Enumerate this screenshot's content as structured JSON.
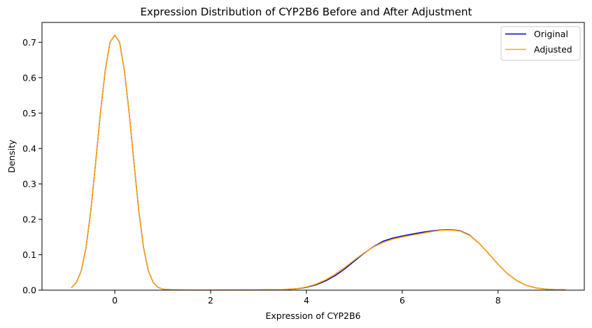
{
  "chart_data": {
    "type": "line",
    "title": "Expression Distribution of CYP2B6 Before and After Adjustment",
    "xlabel": "Expression of CYP2B6",
    "ylabel": "Density",
    "xlim": [
      -1.52,
      9.8
    ],
    "ylim": [
      0.0,
      0.756
    ],
    "xticks": [
      0,
      2,
      4,
      6,
      8
    ],
    "yticks": [
      0.0,
      0.1,
      0.2,
      0.3,
      0.4,
      0.5,
      0.6,
      0.7
    ],
    "xtick_labels": [
      "0",
      "2",
      "4",
      "6",
      "8"
    ],
    "ytick_labels": [
      "0.0",
      "0.1",
      "0.2",
      "0.3",
      "0.4",
      "0.5",
      "0.6",
      "0.7"
    ],
    "legend_position": "top-right",
    "grid": false,
    "series": [
      {
        "name": "Original",
        "color": "#0000cc",
        "x": [
          -0.9,
          -0.8,
          -0.7,
          -0.6,
          -0.5,
          -0.4,
          -0.3,
          -0.2,
          -0.1,
          0.0,
          0.1,
          0.2,
          0.3,
          0.4,
          0.5,
          0.6,
          0.7,
          0.8,
          0.9,
          1.0,
          1.2,
          1.5,
          2.0,
          3.0,
          3.5,
          3.8,
          4.0,
          4.2,
          4.4,
          4.6,
          4.8,
          5.0,
          5.2,
          5.4,
          5.6,
          5.8,
          6.0,
          6.2,
          6.4,
          6.6,
          6.8,
          7.0,
          7.2,
          7.4,
          7.6,
          7.8,
          8.0,
          8.2,
          8.4,
          8.6,
          8.8,
          9.0,
          9.2,
          9.4
        ],
        "y": [
          0.008,
          0.022,
          0.055,
          0.12,
          0.225,
          0.36,
          0.5,
          0.62,
          0.7,
          0.72,
          0.7,
          0.62,
          0.5,
          0.36,
          0.225,
          0.12,
          0.055,
          0.022,
          0.008,
          0.003,
          0.001,
          0.0005,
          0.0005,
          0.0007,
          0.0015,
          0.004,
          0.008,
          0.015,
          0.026,
          0.041,
          0.06,
          0.082,
          0.104,
          0.123,
          0.138,
          0.147,
          0.153,
          0.158,
          0.163,
          0.167,
          0.17,
          0.171,
          0.168,
          0.156,
          0.133,
          0.104,
          0.073,
          0.046,
          0.026,
          0.013,
          0.006,
          0.003,
          0.0015,
          0.001
        ]
      },
      {
        "name": "Adjusted",
        "color": "#ffa500",
        "x": [
          -0.9,
          -0.8,
          -0.7,
          -0.6,
          -0.5,
          -0.4,
          -0.3,
          -0.2,
          -0.1,
          0.0,
          0.1,
          0.2,
          0.3,
          0.4,
          0.5,
          0.6,
          0.7,
          0.8,
          0.9,
          1.0,
          1.2,
          1.5,
          2.0,
          3.0,
          3.5,
          3.8,
          4.0,
          4.2,
          4.4,
          4.6,
          4.8,
          5.0,
          5.2,
          5.4,
          5.6,
          5.8,
          6.0,
          6.2,
          6.4,
          6.6,
          6.8,
          7.0,
          7.2,
          7.4,
          7.6,
          7.8,
          8.0,
          8.2,
          8.4,
          8.6,
          8.8,
          9.0,
          9.2,
          9.4
        ],
        "y": [
          0.008,
          0.022,
          0.055,
          0.12,
          0.225,
          0.36,
          0.5,
          0.62,
          0.7,
          0.72,
          0.7,
          0.62,
          0.5,
          0.36,
          0.225,
          0.12,
          0.055,
          0.022,
          0.008,
          0.003,
          0.001,
          0.0005,
          0.0005,
          0.0008,
          0.0018,
          0.0045,
          0.009,
          0.017,
          0.029,
          0.045,
          0.064,
          0.085,
          0.105,
          0.122,
          0.135,
          0.144,
          0.15,
          0.155,
          0.16,
          0.165,
          0.169,
          0.17,
          0.167,
          0.155,
          0.133,
          0.104,
          0.073,
          0.046,
          0.026,
          0.013,
          0.006,
          0.003,
          0.0015,
          0.001
        ]
      }
    ]
  }
}
